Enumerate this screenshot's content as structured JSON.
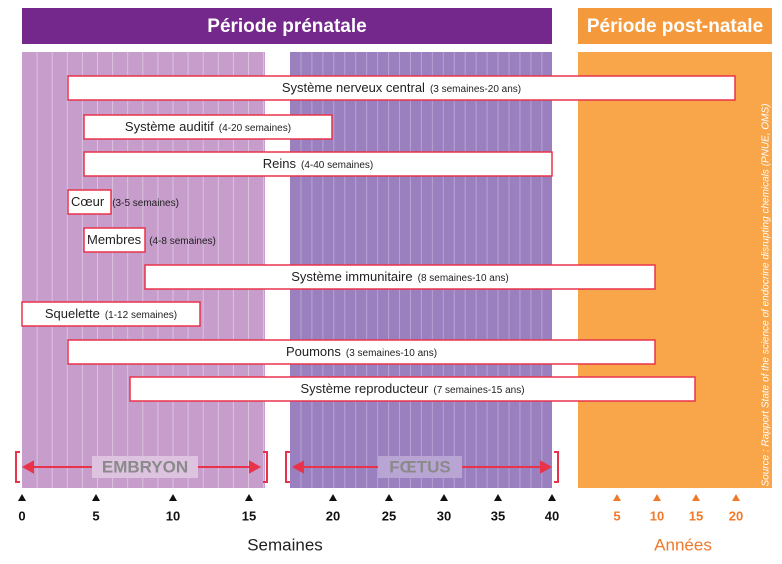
{
  "header": {
    "prenatal": "Période prénatale",
    "postnatal": "Période post-natale"
  },
  "systems": [
    {
      "name": "Système nerveux central",
      "range": "(3 semaines-20 ans)"
    },
    {
      "name": "Système auditif",
      "range": "(4-20 semaines)"
    },
    {
      "name": "Reins",
      "range": "(4-40 semaines)"
    },
    {
      "name": "Cœur",
      "range": "(3-5 semaines)"
    },
    {
      "name": "Membres",
      "range": "(4-8 semaines)"
    },
    {
      "name": "Système immunitaire",
      "range": "(8 semaines-10 ans)"
    },
    {
      "name": "Squelette",
      "range": "(1-12 semaines)"
    },
    {
      "name": "Poumons",
      "range": "(3 semaines-10 ans)"
    },
    {
      "name": "Système reproducteur",
      "range": "(7 semaines-15 ans)"
    }
  ],
  "phases": {
    "embryo": "EMBRYON",
    "fetus": "FŒTUS"
  },
  "axis": {
    "weeks": [
      0,
      5,
      10,
      15,
      20,
      25,
      30,
      35,
      40
    ],
    "weeks_label": "Semaines",
    "years": [
      5,
      10,
      15,
      20
    ],
    "years_label": "Années"
  },
  "source": "Source : Rapport State of the science of endocrine disrupting chemicals (PNUE, OMS)"
}
